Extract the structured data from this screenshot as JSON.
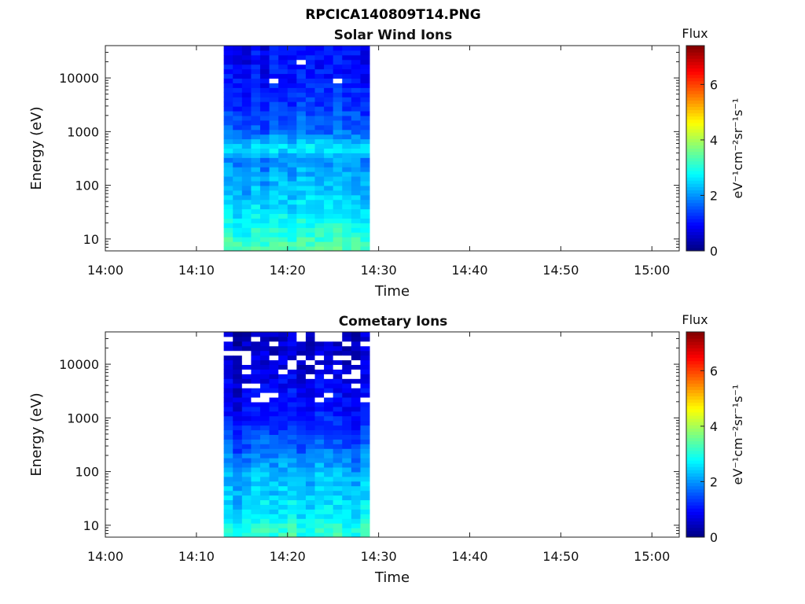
{
  "figure_title": "RPCICA140809T14.PNG",
  "colors": {
    "axis": "#222222",
    "text": "#111111",
    "colormap": [
      "#00007f",
      "#0000ff",
      "#007fff",
      "#00ffff",
      "#7fff7f",
      "#ffff00",
      "#ff7f00",
      "#ff0000",
      "#7f0000"
    ]
  },
  "chart_data": [
    {
      "type": "heatmap",
      "title": "Solar Wind Ions",
      "xlabel": "Time",
      "ylabel": "Energy (eV)",
      "y_scale": "log",
      "xlim": [
        "14:00",
        "15:03"
      ],
      "ylim": [
        6,
        40000
      ],
      "x_ticks": [
        "14:00",
        "14:10",
        "14:20",
        "14:30",
        "14:40",
        "14:50",
        "15:00"
      ],
      "y_ticks": [
        "10",
        "100",
        "1000",
        "10000"
      ],
      "data_time_range": [
        "14:13",
        "14:29"
      ],
      "colorbar": {
        "title": "Flux",
        "label": "eV⁻¹cm⁻²sr⁻¹s⁻¹",
        "range": [
          0,
          7.4
        ],
        "ticks": [
          "0",
          "2",
          "4",
          "6"
        ]
      },
      "flux_profile": [
        {
          "energy_eV": 7,
          "flux": 3.3
        },
        {
          "energy_eV": 15,
          "flux": 2.9
        },
        {
          "energy_eV": 30,
          "flux": 2.6
        },
        {
          "energy_eV": 70,
          "flux": 2.3
        },
        {
          "energy_eV": 150,
          "flux": 2.1
        },
        {
          "energy_eV": 300,
          "flux": 1.9
        },
        {
          "energy_eV": 500,
          "flux": 2.6
        },
        {
          "energy_eV": 1000,
          "flux": 1.6
        },
        {
          "energy_eV": 3000,
          "flux": 1.3
        },
        {
          "energy_eV": 10000,
          "flux": 1.0
        },
        {
          "energy_eV": 40000,
          "flux": 0.9
        }
      ]
    },
    {
      "type": "heatmap",
      "title": "Cometary Ions",
      "xlabel": "Time",
      "ylabel": "Energy (eV)",
      "y_scale": "log",
      "xlim": [
        "14:00",
        "15:03"
      ],
      "ylim": [
        6,
        40000
      ],
      "x_ticks": [
        "14:00",
        "14:10",
        "14:20",
        "14:30",
        "14:40",
        "14:50",
        "15:00"
      ],
      "y_ticks": [
        "10",
        "100",
        "1000",
        "10000"
      ],
      "data_time_range": [
        "14:13",
        "14:29"
      ],
      "colorbar": {
        "title": "Flux",
        "label": "eV⁻¹cm⁻²sr⁻¹s⁻¹",
        "range": [
          0,
          7.4
        ],
        "ticks": [
          "0",
          "2",
          "4",
          "6"
        ]
      },
      "flux_profile": [
        {
          "energy_eV": 7,
          "flux": 3.0
        },
        {
          "energy_eV": 15,
          "flux": 2.6
        },
        {
          "energy_eV": 30,
          "flux": 2.4
        },
        {
          "energy_eV": 70,
          "flux": 2.2
        },
        {
          "energy_eV": 150,
          "flux": 1.9
        },
        {
          "energy_eV": 300,
          "flux": 1.5
        },
        {
          "energy_eV": 1000,
          "flux": 1.0
        },
        {
          "energy_eV": 3000,
          "flux": 0.8
        },
        {
          "energy_eV": 10000,
          "flux": 0.5
        },
        {
          "energy_eV": 40000,
          "flux": 0.4
        }
      ]
    }
  ]
}
